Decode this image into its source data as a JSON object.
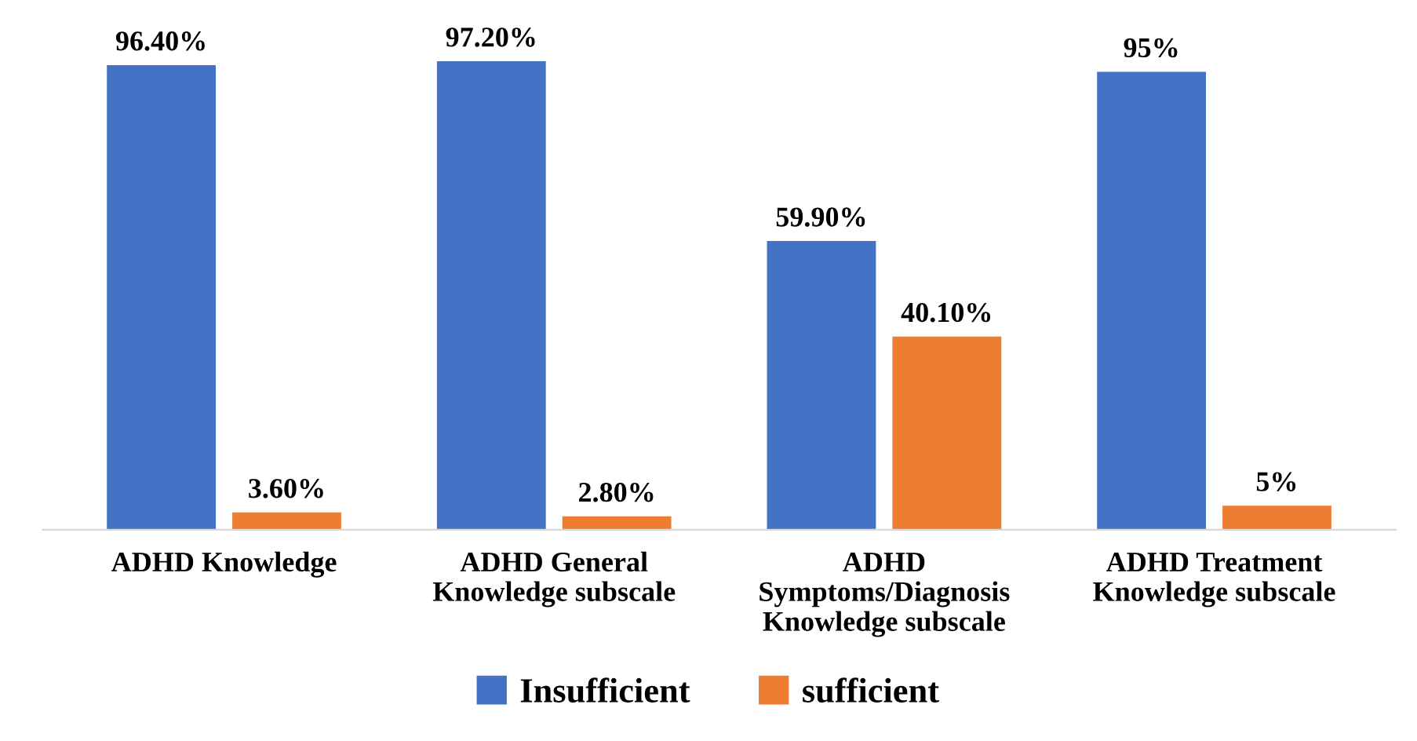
{
  "chart_data": {
    "type": "bar",
    "categories": [
      "ADHD Knowledge",
      "ADHD General\nKnowledge subscale",
      "ADHD\nSymptoms/Diagnosis\nKnowledge subscale",
      "ADHD Treatment\nKnowledge subscale"
    ],
    "series": [
      {
        "name": "Insufficient",
        "color": "#4472c4",
        "values": [
          96.4,
          97.2,
          59.9,
          95
        ],
        "value_labels": [
          "96.40%",
          "97.20%",
          "59.90%",
          "95%"
        ]
      },
      {
        "name": "sufficient",
        "color": "#ed7d31",
        "values": [
          3.6,
          2.8,
          40.1,
          5
        ],
        "value_labels": [
          "3.60%",
          "2.80%",
          "40.10%",
          "5%"
        ]
      }
    ],
    "legend": "bottom",
    "grid": false
  }
}
